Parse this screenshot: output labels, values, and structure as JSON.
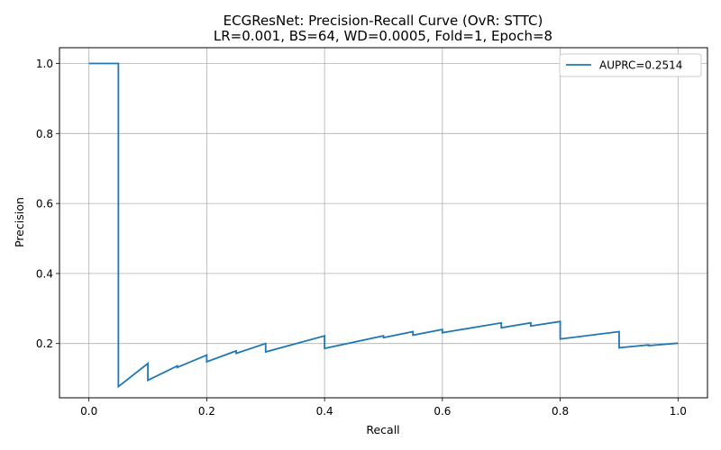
{
  "chart_data": {
    "type": "line",
    "title": "ECGResNet: Precision-Recall Curve (OvR: STTC)",
    "subtitle": "LR=0.001, BS=64, WD=0.0005, Fold=1, Epoch=8",
    "xlabel": "Recall",
    "ylabel": "Precision",
    "xlim": [
      -0.05,
      1.05
    ],
    "ylim": [
      0.045,
      1.045
    ],
    "xticks": [
      "0.0",
      "0.2",
      "0.4",
      "0.6",
      "0.8",
      "1.0"
    ],
    "yticks": [
      "0.2",
      "0.4",
      "0.6",
      "0.8",
      "1.0"
    ],
    "grid": true,
    "legend_position": "top-right",
    "line_color": "#1f77b4",
    "series": [
      {
        "name": "AUPRC=0.2514",
        "x": [
          0.0,
          0.05,
          0.05,
          0.1,
          0.1,
          0.15,
          0.15,
          0.2,
          0.2,
          0.25,
          0.25,
          0.3,
          0.3,
          0.4,
          0.4,
          0.5,
          0.5,
          0.55,
          0.55,
          0.6,
          0.6,
          0.7,
          0.7,
          0.75,
          0.75,
          0.8,
          0.8,
          0.9,
          0.9,
          0.95,
          0.95,
          1.0
        ],
        "y": [
          1.0,
          1.0,
          0.077,
          0.143,
          0.095,
          0.136,
          0.132,
          0.167,
          0.148,
          0.179,
          0.172,
          0.2,
          0.176,
          0.222,
          0.186,
          0.222,
          0.217,
          0.234,
          0.224,
          0.24,
          0.231,
          0.259,
          0.245,
          0.259,
          0.25,
          0.263,
          0.213,
          0.234,
          0.188,
          0.196,
          0.194,
          0.201
        ]
      }
    ]
  }
}
